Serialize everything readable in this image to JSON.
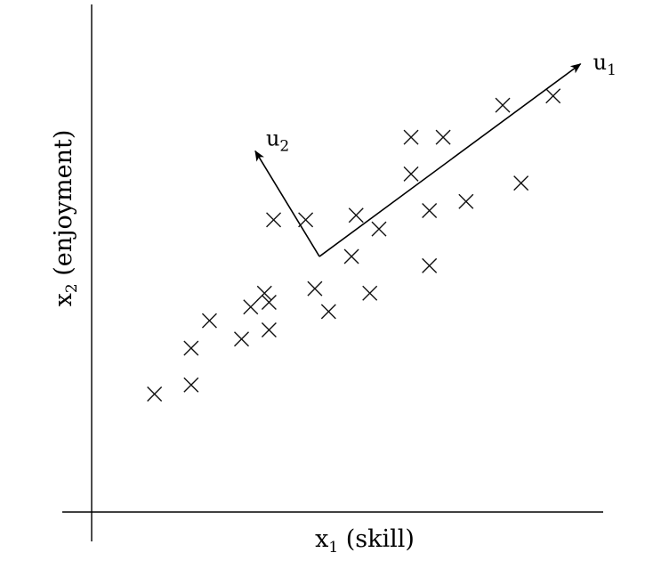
{
  "chart_data": {
    "type": "scatter",
    "title": "",
    "xlabel": {
      "base": "x",
      "sub": "1",
      "rest": " (skill)"
    },
    "ylabel": {
      "base": "x",
      "sub": "2",
      "rest": " (enjoyment)"
    },
    "xlim": [
      0,
      10
    ],
    "ylim": [
      0,
      10
    ],
    "grid": false,
    "legend": false,
    "series": [
      {
        "marker": "x",
        "color": "#111111",
        "points": [
          [
            1.1,
            2.3
          ],
          [
            1.9,
            3.3
          ],
          [
            1.9,
            2.5
          ],
          [
            2.3,
            3.9
          ],
          [
            3.0,
            3.5
          ],
          [
            3.2,
            4.2
          ],
          [
            3.5,
            4.5
          ],
          [
            3.6,
            3.7
          ],
          [
            3.6,
            4.3
          ],
          [
            3.7,
            6.1
          ],
          [
            4.6,
            4.6
          ],
          [
            4.4,
            6.1
          ],
          [
            4.9,
            4.1
          ],
          [
            5.4,
            5.3
          ],
          [
            5.5,
            6.2
          ],
          [
            5.8,
            4.5
          ],
          [
            6.0,
            5.9
          ],
          [
            6.7,
            7.1
          ],
          [
            6.7,
            7.9
          ],
          [
            7.1,
            6.3
          ],
          [
            7.1,
            5.1
          ],
          [
            7.4,
            7.9
          ],
          [
            7.9,
            6.5
          ],
          [
            8.7,
            8.6
          ],
          [
            9.1,
            6.9
          ],
          [
            9.8,
            8.8
          ]
        ]
      }
    ],
    "vectors": [
      {
        "name": {
          "base": "u",
          "sub": "1"
        },
        "from": [
          4.7,
          5.3
        ],
        "to": [
          10.4,
          9.5
        ]
      },
      {
        "name": {
          "base": "u",
          "sub": "2"
        },
        "from": [
          4.7,
          5.3
        ],
        "to": [
          3.3,
          7.6
        ]
      }
    ]
  }
}
